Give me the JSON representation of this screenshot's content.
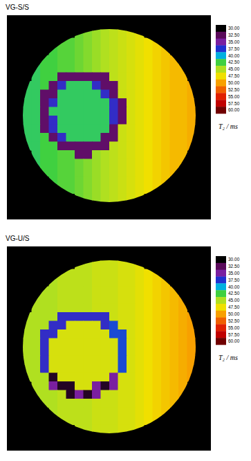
{
  "chart_data": [
    {
      "type": "heatmap",
      "title": "VG-S/S",
      "color_range": [
        30,
        60
      ],
      "color_ticks": [
        {
          "value": 30,
          "label": "30.00"
        },
        {
          "value": 32.5,
          "label": "32.50"
        },
        {
          "value": 35,
          "label": "35.00"
        },
        {
          "value": 37.5,
          "label": "37.50"
        },
        {
          "value": 40,
          "label": "40.00"
        },
        {
          "value": 42.5,
          "label": "42.50"
        },
        {
          "value": 45,
          "label": "45.00"
        },
        {
          "value": 47.5,
          "label": "47.50"
        },
        {
          "value": 50,
          "label": "50.00"
        },
        {
          "value": 52.5,
          "label": "52.50"
        },
        {
          "value": 55,
          "label": "55.00"
        },
        {
          "value": 57.5,
          "label": "57.50"
        },
        {
          "value": 60,
          "label": "60.00"
        }
      ],
      "colors": [
        "#000000",
        "#5a0a5a",
        "#7a1fa0",
        "#2030d0",
        "#00b0e0",
        "#40d040",
        "#b0e020",
        "#f0e000",
        "#f8a000",
        "#f06000",
        "#e02000",
        "#c00000",
        "#700000"
      ],
      "colorbar_label": "T₂ / ms",
      "cells": [
        [
          null,
          null,
          null,
          null,
          null,
          null,
          43.5,
          44,
          44.5,
          45,
          45.5,
          46,
          46.5,
          47,
          null,
          null,
          null,
          null,
          null,
          null
        ],
        [
          null,
          null,
          null,
          null,
          43,
          43,
          43.5,
          44,
          44.5,
          45,
          45.5,
          46,
          46.5,
          47,
          47.5,
          48,
          null,
          null,
          null,
          null
        ],
        [
          null,
          null,
          null,
          42.5,
          43,
          43,
          43.5,
          44,
          44.5,
          45,
          45.5,
          46,
          46.5,
          47,
          47.5,
          48,
          48.5,
          null,
          null,
          null
        ],
        [
          null,
          null,
          42.5,
          42.5,
          43,
          43,
          43.5,
          44,
          44.5,
          45,
          45.5,
          46,
          46.5,
          47,
          47.5,
          48,
          48.5,
          49,
          null,
          null
        ],
        [
          null,
          42,
          42.5,
          42.5,
          43,
          43,
          43.5,
          44,
          44.5,
          45,
          45.5,
          46,
          46.5,
          47,
          47.5,
          48,
          48.5,
          49,
          49,
          null
        ],
        [
          null,
          42,
          42.5,
          42.5,
          33,
          33,
          33,
          33,
          33,
          33,
          45.5,
          46,
          46.5,
          47,
          47.5,
          48,
          48.5,
          49,
          49,
          null
        ],
        [
          42,
          42,
          42.5,
          33,
          37,
          42,
          42,
          42,
          37,
          33,
          33,
          46,
          46.5,
          47,
          47.5,
          48,
          48.5,
          49,
          49,
          49.5
        ],
        [
          42,
          42,
          33,
          33,
          42,
          42,
          42,
          42,
          42,
          37,
          33,
          46,
          46.5,
          47,
          47.5,
          48,
          48.5,
          49,
          49,
          49.5
        ],
        [
          42,
          42,
          33,
          37,
          42,
          42,
          42,
          42,
          42,
          42,
          37,
          33,
          46.5,
          47,
          47.5,
          48,
          48.5,
          49,
          49,
          49.5
        ],
        [
          42,
          42,
          33,
          42,
          42,
          42,
          42,
          42,
          42,
          42,
          37,
          33,
          46.5,
          47,
          47.5,
          48,
          48.5,
          49,
          49,
          49.5
        ],
        [
          42,
          42,
          33,
          37,
          42,
          42,
          42,
          42,
          42,
          42,
          37,
          33,
          46.5,
          47,
          47.5,
          48,
          48.5,
          49,
          49,
          49.5
        ],
        [
          42,
          42,
          33,
          37,
          42,
          42,
          42,
          42,
          42,
          42,
          33,
          46,
          46.5,
          47,
          47.5,
          48,
          48.5,
          49,
          49,
          49.5
        ],
        [
          42,
          42,
          42.5,
          33,
          37,
          42,
          42,
          42,
          42,
          33,
          33,
          46,
          46.5,
          47,
          47.5,
          48,
          48.5,
          49,
          49,
          49.5
        ],
        [
          42,
          42,
          42.5,
          42.5,
          33,
          33,
          33,
          33,
          33,
          33,
          45.5,
          46,
          46.5,
          47,
          47.5,
          48,
          48.5,
          49,
          49,
          49.5
        ],
        [
          null,
          42,
          42.5,
          42.5,
          43,
          43,
          33,
          33,
          44.5,
          45,
          45.5,
          46,
          46.5,
          47,
          47.5,
          48,
          48.5,
          49,
          49,
          null
        ],
        [
          null,
          42,
          42.5,
          42.5,
          43,
          43,
          43.5,
          44,
          44.5,
          45,
          45.5,
          46,
          46.5,
          47,
          47.5,
          48,
          48.5,
          49,
          49,
          null
        ],
        [
          null,
          null,
          42.5,
          42.5,
          43,
          43,
          43.5,
          44,
          44.5,
          45,
          45.5,
          46,
          46.5,
          47,
          47.5,
          48,
          48.5,
          49,
          null,
          null
        ],
        [
          null,
          null,
          null,
          42.5,
          43,
          43,
          43.5,
          44,
          44.5,
          45,
          45.5,
          46,
          46.5,
          47,
          47.5,
          48,
          48.5,
          null,
          null,
          null
        ],
        [
          null,
          null,
          null,
          null,
          43,
          43,
          43.5,
          44,
          44.5,
          45,
          45.5,
          46,
          46.5,
          47,
          47.5,
          48,
          null,
          null,
          null,
          null
        ],
        [
          null,
          null,
          null,
          null,
          null,
          null,
          43.5,
          44,
          44.5,
          45,
          45.5,
          46,
          46.5,
          47,
          null,
          null,
          null,
          null,
          null,
          null
        ]
      ]
    },
    {
      "type": "heatmap",
      "title": "VG-U/S",
      "color_range": [
        30,
        60
      ],
      "color_ticks": [
        {
          "value": 30,
          "label": "30.00"
        },
        {
          "value": 32.5,
          "label": "32.50"
        },
        {
          "value": 35,
          "label": "35.00"
        },
        {
          "value": 37.5,
          "label": "37.50"
        },
        {
          "value": 40,
          "label": "40.00"
        },
        {
          "value": 42.5,
          "label": "42.50"
        },
        {
          "value": 45,
          "label": "45.00"
        },
        {
          "value": 47.5,
          "label": "47.50"
        },
        {
          "value": 50,
          "label": "50.00"
        },
        {
          "value": 52.5,
          "label": "52.50"
        },
        {
          "value": 55,
          "label": "55.00"
        },
        {
          "value": 57.5,
          "label": "57.50"
        },
        {
          "value": 60,
          "label": "60.00"
        }
      ],
      "colors": [
        "#000000",
        "#5a0a5a",
        "#7a1fa0",
        "#2030d0",
        "#00b0e0",
        "#40d040",
        "#b0e020",
        "#f0e000",
        "#f8a000",
        "#f06000",
        "#e02000",
        "#c00000",
        "#700000"
      ],
      "colorbar_label": "T₂ / ms",
      "cells": [
        [
          null,
          null,
          null,
          null,
          null,
          null,
          45.5,
          45.5,
          46,
          46,
          46,
          46.5,
          46.5,
          47,
          null,
          null,
          null,
          null,
          null,
          null
        ],
        [
          null,
          null,
          null,
          null,
          45.5,
          45.5,
          45.5,
          45.5,
          46,
          46,
          46,
          46.5,
          46.5,
          47,
          47.5,
          48,
          null,
          null,
          null,
          null
        ],
        [
          null,
          null,
          null,
          45,
          45.5,
          45.5,
          45.5,
          45.5,
          46,
          46,
          46,
          46.5,
          46.5,
          47,
          47.5,
          48,
          48.5,
          null,
          null,
          null
        ],
        [
          null,
          null,
          45,
          45,
          45.5,
          45.5,
          45.5,
          45.5,
          46,
          46,
          46,
          46.5,
          46.5,
          47,
          47.5,
          48,
          48.5,
          49,
          null,
          null
        ],
        [
          null,
          45,
          45,
          45,
          45.5,
          45.5,
          45.5,
          45.5,
          46,
          46,
          46,
          46.5,
          46.5,
          47,
          47.5,
          48,
          48.5,
          49,
          49.5,
          null
        ],
        [
          null,
          45,
          45,
          45,
          45.5,
          45.5,
          45.5,
          45.5,
          46,
          46,
          46,
          46.5,
          46.5,
          47,
          47.5,
          48,
          48.5,
          49,
          49.5,
          null
        ],
        [
          45,
          45,
          45,
          45,
          37,
          37,
          37,
          37,
          37,
          37,
          46,
          46.5,
          46.5,
          47,
          47.5,
          48,
          48.5,
          49,
          49.5,
          50
        ],
        [
          45,
          45,
          45,
          37,
          37,
          46.5,
          46.5,
          46.5,
          46.5,
          37,
          38,
          46.5,
          46.5,
          47,
          47.5,
          48,
          48.5,
          49,
          49.5,
          50
        ],
        [
          45,
          45,
          37,
          37,
          46.5,
          46.5,
          46.5,
          46.5,
          46.5,
          46.5,
          38,
          38,
          46.5,
          47,
          47.5,
          48,
          48.5,
          49,
          49.5,
          50
        ],
        [
          45,
          45,
          37,
          46.5,
          46.5,
          46.5,
          46.5,
          46.5,
          46.5,
          46.5,
          46.5,
          38,
          46.5,
          47,
          47.5,
          48,
          48.5,
          49,
          49.5,
          50
        ],
        [
          45,
          45,
          37,
          46.5,
          46.5,
          46.5,
          46.5,
          46.5,
          46.5,
          46.5,
          46.5,
          38,
          46.5,
          47,
          47.5,
          48,
          48.5,
          49,
          49.5,
          50
        ],
        [
          45,
          45,
          37,
          46.5,
          46.5,
          46.5,
          46.5,
          46.5,
          46.5,
          46.5,
          46.5,
          38,
          46.5,
          47,
          47.5,
          48,
          48.5,
          49,
          49.5,
          50
        ],
        [
          45,
          45,
          37,
          46.5,
          46.5,
          46.5,
          46.5,
          46.5,
          46.5,
          46.5,
          46.5,
          38,
          46.5,
          47,
          47.5,
          48,
          48.5,
          49,
          49.5,
          50
        ],
        [
          45,
          45,
          45,
          31,
          46.5,
          46.5,
          46.5,
          46.5,
          46.5,
          46.5,
          35,
          46.5,
          46.5,
          47,
          47.5,
          48,
          48.5,
          49,
          49.5,
          50
        ],
        [
          null,
          45,
          45,
          35,
          31,
          31,
          46.5,
          46.5,
          35,
          31,
          35,
          46.5,
          46.5,
          47,
          47.5,
          48,
          48.5,
          49,
          49.5,
          null
        ],
        [
          null,
          45,
          45,
          45,
          45.5,
          31,
          35,
          31,
          35,
          46,
          46,
          46.5,
          46.5,
          47,
          47.5,
          48,
          48.5,
          49,
          49.5,
          null
        ],
        [
          null,
          null,
          45,
          45,
          45.5,
          45.5,
          45.5,
          45.5,
          46,
          46,
          46,
          46.5,
          46.5,
          47,
          47.5,
          48,
          48.5,
          49,
          null,
          null
        ],
        [
          null,
          null,
          null,
          45,
          45.5,
          45.5,
          45.5,
          45.5,
          46,
          46,
          46,
          46.5,
          46.5,
          47,
          47.5,
          48,
          48.5,
          null,
          null,
          null
        ],
        [
          null,
          null,
          null,
          null,
          45.5,
          45.5,
          45.5,
          45.5,
          46,
          46,
          46,
          46.5,
          46.5,
          47,
          47.5,
          48,
          null,
          null,
          null,
          null
        ],
        [
          null,
          null,
          null,
          null,
          null,
          null,
          45.5,
          45.5,
          46,
          46,
          46,
          46.5,
          46.5,
          47,
          null,
          null,
          null,
          null,
          null,
          null
        ]
      ]
    }
  ]
}
